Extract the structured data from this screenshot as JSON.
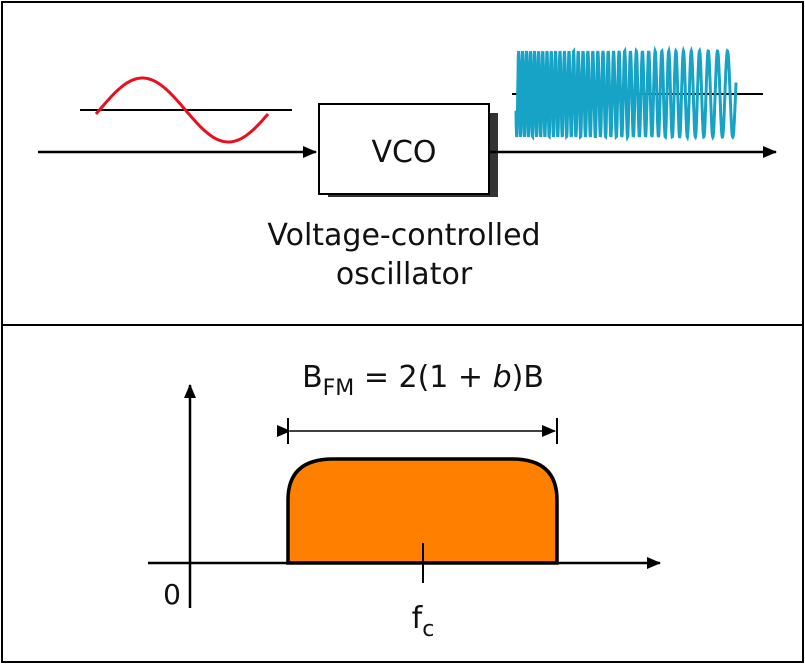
{
  "vco": {
    "box_label": "VCO",
    "caption_line1": "Voltage-controlled",
    "caption_line2": "oscillator"
  },
  "spectrum": {
    "bandwidth_symbol": "B",
    "bandwidth_subscript": "FM",
    "formula_prefix": " = 2(1 + ",
    "formula_variable": "b",
    "formula_suffix": ")B",
    "origin_label": "0",
    "carrier_symbol": "f",
    "carrier_subscript": "c"
  },
  "colors": {
    "message_signal": "#e8101e",
    "fm_signal": "#17a3c6",
    "spectrum_fill": "#ff8000",
    "box_shadow": "#333333",
    "stroke": "#000000"
  }
}
